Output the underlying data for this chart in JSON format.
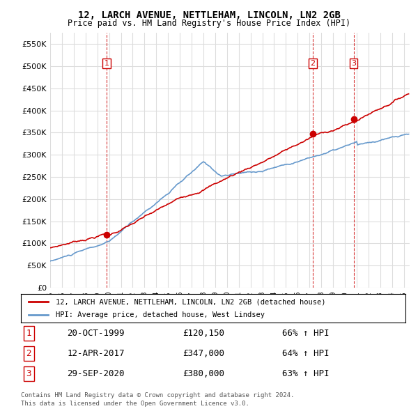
{
  "title": "12, LARCH AVENUE, NETTLEHAM, LINCOLN, LN2 2GB",
  "subtitle": "Price paid vs. HM Land Registry's House Price Index (HPI)",
  "ylim": [
    0,
    575000
  ],
  "yticks": [
    0,
    50000,
    100000,
    150000,
    200000,
    250000,
    300000,
    350000,
    400000,
    450000,
    500000,
    550000
  ],
  "xlim_start": 1995.0,
  "xlim_end": 2025.5,
  "legend_line1": "12, LARCH AVENUE, NETTLEHAM, LINCOLN, LN2 2GB (detached house)",
  "legend_line2": "HPI: Average price, detached house, West Lindsey",
  "transactions": [
    {
      "num": 1,
      "date": "20-OCT-1999",
      "price": "£120,150",
      "hpi": "66% ↑ HPI",
      "year": 1999.8
    },
    {
      "num": 2,
      "date": "12-APR-2017",
      "price": "£347,000",
      "hpi": "64% ↑ HPI",
      "year": 2017.28
    },
    {
      "num": 3,
      "date": "29-SEP-2020",
      "price": "£380,000",
      "hpi": "63% ↑ HPI",
      "year": 2020.75
    }
  ],
  "footer1": "Contains HM Land Registry data © Crown copyright and database right 2024.",
  "footer2": "This data is licensed under the Open Government Licence v3.0.",
  "red_color": "#cc0000",
  "blue_color": "#6699cc",
  "vline_color": "#cc0000",
  "grid_color": "#dddddd",
  "background_color": "#ffffff"
}
